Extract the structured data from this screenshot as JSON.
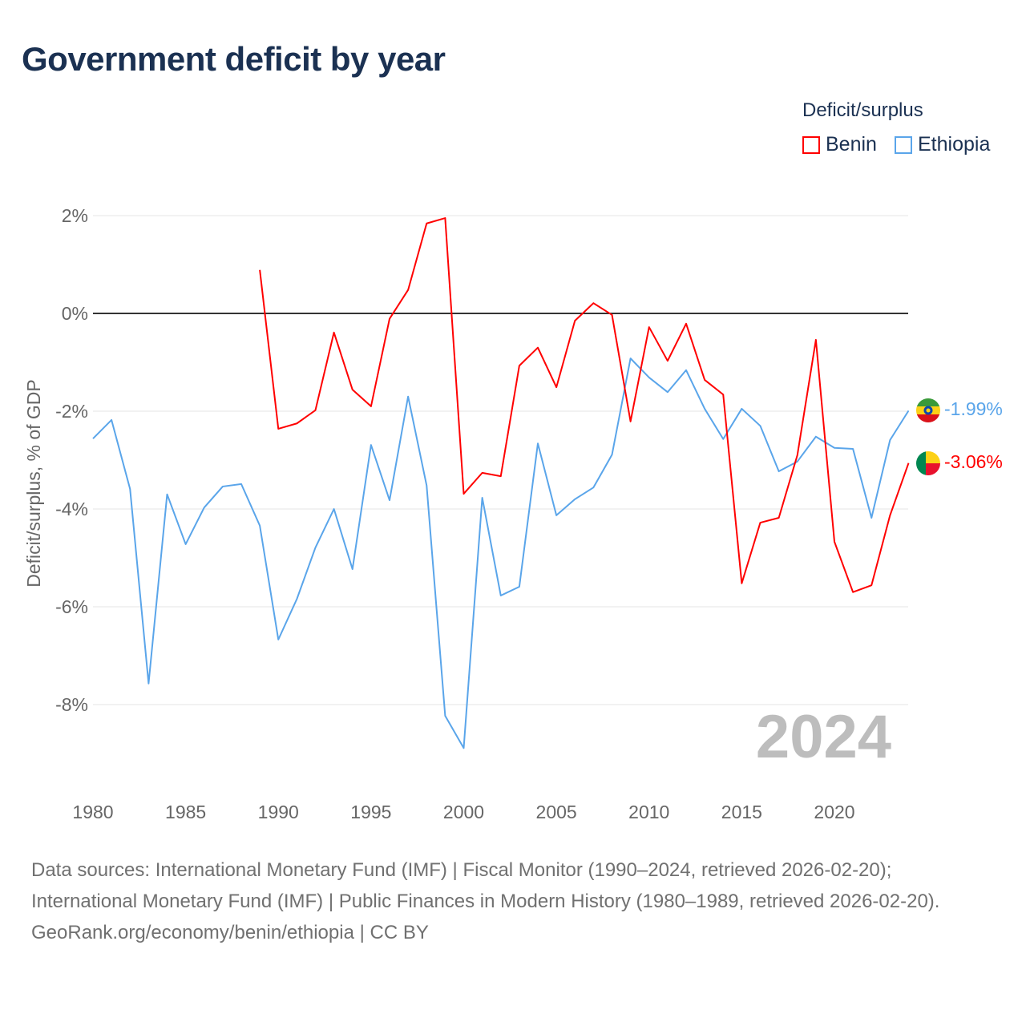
{
  "chart_data": {
    "type": "line",
    "title": "Government deficit by year",
    "xlabel": "",
    "ylabel": "Deficit/surplus, % of GDP",
    "xlim": [
      1980,
      2024
    ],
    "ylim": [
      -9,
      2
    ],
    "grid": true,
    "x_ticks": [
      "1980",
      "1985",
      "1990",
      "1995",
      "2000",
      "2005",
      "2010",
      "2015",
      "2020"
    ],
    "y_ticks": [
      {
        "v": 2,
        "label": "2%"
      },
      {
        "v": 0,
        "label": "0%"
      },
      {
        "v": -2,
        "label": "-2%"
      },
      {
        "v": -4,
        "label": "-4%"
      },
      {
        "v": -6,
        "label": "-6%"
      },
      {
        "v": -8,
        "label": "-8%"
      }
    ],
    "legend_title": "Deficit/surplus",
    "legend_position": "top-right",
    "year_label": "2024",
    "series": [
      {
        "name": "Benin",
        "color": "#ff0000",
        "end_label": "-3.06%",
        "start_year": 1989,
        "values": [
          0.89,
          -2.36,
          -2.25,
          -1.98,
          -0.39,
          -1.56,
          -1.9,
          -0.11,
          0.48,
          1.84,
          1.95,
          -3.69,
          -3.26,
          -3.33,
          -1.07,
          -0.7,
          -1.51,
          -0.15,
          0.21,
          -0.03,
          -2.21,
          -0.28,
          -0.97,
          -0.21,
          -1.36,
          -1.66,
          -5.52,
          -4.28,
          -4.18,
          -2.9,
          -0.54,
          -4.67,
          -5.7,
          -5.56,
          -4.13,
          -3.06
        ]
      },
      {
        "name": "Ethiopia",
        "color": "#5aa5ea",
        "end_label": "-1.99%",
        "start_year": 1980,
        "values": [
          -2.56,
          -2.18,
          -3.59,
          -7.57,
          -3.7,
          -4.72,
          -3.97,
          -3.54,
          -3.49,
          -4.34,
          -6.67,
          -5.84,
          -4.79,
          -4.0,
          -5.23,
          -2.69,
          -3.82,
          -1.7,
          -3.52,
          -8.23,
          -8.89,
          -3.77,
          -5.77,
          -5.59,
          -2.66,
          -4.13,
          -3.8,
          -3.56,
          -2.89,
          -0.92,
          -1.31,
          -1.61,
          -1.16,
          -1.95,
          -2.57,
          -1.95,
          -2.3,
          -3.23,
          -3.03,
          -2.52,
          -2.75,
          -2.77,
          -4.18,
          -2.59,
          -1.99
        ]
      }
    ]
  },
  "footer": {
    "sources": "Data sources: International Monetary Fund (IMF) | Fiscal Monitor (1990–2024, retrieved 2026-02-20); International Monetary Fund (IMF) | Public Finances in Modern History (1980–1989, retrieved 2026-02-20).",
    "credit": "GeoRank.org/economy/benin/ethiopia | CC BY"
  }
}
